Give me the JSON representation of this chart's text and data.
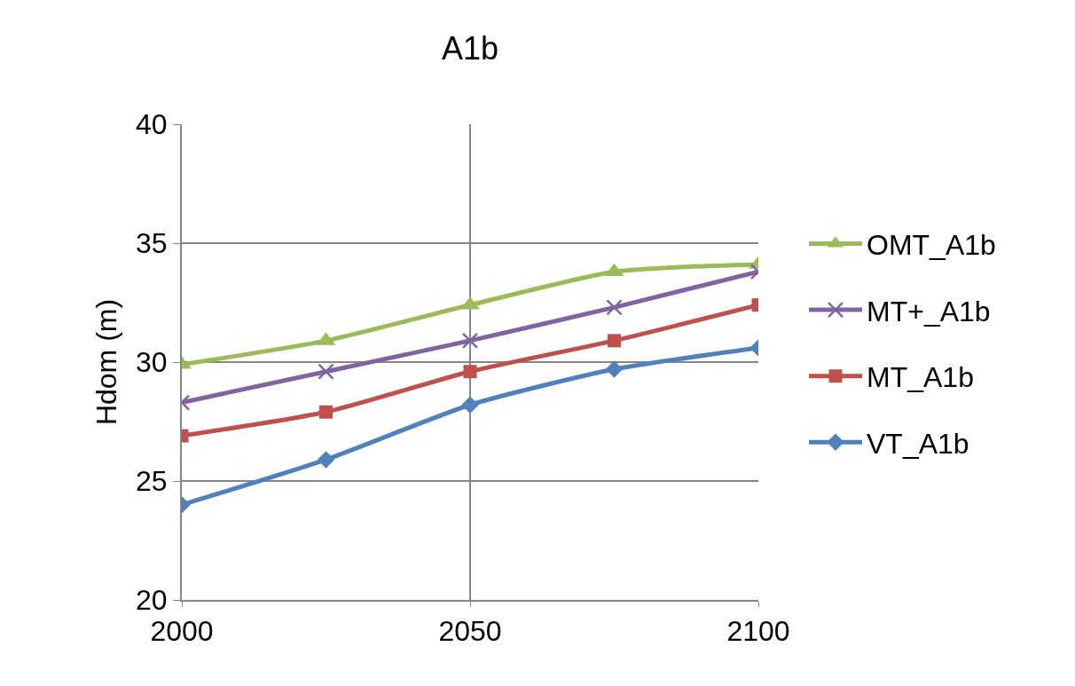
{
  "chart_data": {
    "type": "line",
    "title": "A1b",
    "ylabel": "Hdom (m)",
    "x": [
      2000,
      2025,
      2050,
      2075,
      2100
    ],
    "xlim": [
      2000,
      2100
    ],
    "xticks": [
      2000,
      2050,
      2100
    ],
    "ylim": [
      20,
      40
    ],
    "yticks": [
      20,
      25,
      30,
      35,
      40
    ],
    "grid": true,
    "legend": "right",
    "line_style": "solid",
    "series": [
      {
        "name": "OMT_A1b",
        "color": "#9bbb59",
        "marker": "triangle",
        "values": [
          29.9,
          30.9,
          32.4,
          33.8,
          34.1
        ]
      },
      {
        "name": "MT+_A1b",
        "color": "#8064a2",
        "marker": "cross",
        "values": [
          28.3,
          29.6,
          30.9,
          32.3,
          33.8
        ]
      },
      {
        "name": "MT_A1b",
        "color": "#c0504d",
        "marker": "square",
        "values": [
          26.9,
          27.9,
          29.6,
          30.9,
          32.4
        ]
      },
      {
        "name": "VT_A1b",
        "color": "#4f81bd",
        "marker": "diamond",
        "values": [
          24.0,
          25.9,
          28.2,
          29.7,
          30.6
        ]
      }
    ]
  }
}
